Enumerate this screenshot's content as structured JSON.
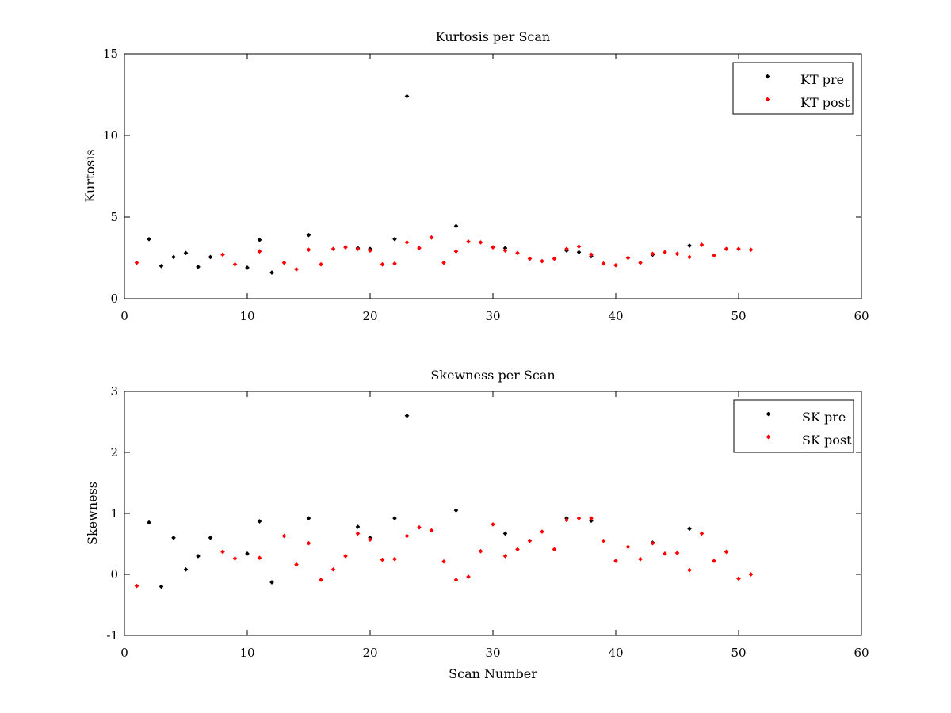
{
  "chart_data": [
    {
      "type": "scatter",
      "title": "Kurtosis per Scan",
      "xlabel": "",
      "ylabel": "Kurtosis",
      "xlim": [
        0,
        60
      ],
      "ylim": [
        0,
        15
      ],
      "xticks": [
        "0",
        "10",
        "20",
        "30",
        "40",
        "50",
        "60"
      ],
      "yticks": [
        "0",
        "5",
        "10",
        "15"
      ],
      "grid": false,
      "legend_position": "top-right",
      "series": [
        {
          "name": "KT pre",
          "color": "#000000",
          "points": [
            [
              2,
              3.65
            ],
            [
              3,
              2.0
            ],
            [
              4,
              2.55
            ],
            [
              5,
              2.8
            ],
            [
              6,
              1.95
            ],
            [
              7,
              2.55
            ],
            [
              10,
              1.9
            ],
            [
              11,
              3.6
            ],
            [
              12,
              1.6
            ],
            [
              15,
              3.9
            ],
            [
              19,
              3.1
            ],
            [
              20,
              3.05
            ],
            [
              22,
              3.65
            ],
            [
              23,
              12.4
            ],
            [
              27,
              4.45
            ],
            [
              31,
              3.1
            ],
            [
              36,
              2.95
            ],
            [
              37,
              2.85
            ],
            [
              38,
              2.6
            ],
            [
              43,
              2.7
            ],
            [
              46,
              3.25
            ]
          ]
        },
        {
          "name": "KT post",
          "color": "#ff0000",
          "points": [
            [
              1,
              2.2
            ],
            [
              8,
              2.7
            ],
            [
              9,
              2.1
            ],
            [
              11,
              2.9
            ],
            [
              13,
              2.2
            ],
            [
              14,
              1.8
            ],
            [
              15,
              3.0
            ],
            [
              16,
              2.1
            ],
            [
              17,
              3.05
            ],
            [
              18,
              3.15
            ],
            [
              19,
              3.05
            ],
            [
              20,
              2.95
            ],
            [
              21,
              2.1
            ],
            [
              22,
              2.15
            ],
            [
              23,
              3.45
            ],
            [
              24,
              3.1
            ],
            [
              25,
              3.75
            ],
            [
              26,
              2.2
            ],
            [
              27,
              2.9
            ],
            [
              28,
              3.5
            ],
            [
              29,
              3.45
            ],
            [
              30,
              3.15
            ],
            [
              31,
              2.95
            ],
            [
              32,
              2.8
            ],
            [
              33,
              2.45
            ],
            [
              34,
              2.3
            ],
            [
              35,
              2.45
            ],
            [
              36,
              3.05
            ],
            [
              37,
              3.2
            ],
            [
              38,
              2.7
            ],
            [
              39,
              2.15
            ],
            [
              40,
              2.05
            ],
            [
              41,
              2.5
            ],
            [
              42,
              2.2
            ],
            [
              43,
              2.75
            ],
            [
              44,
              2.85
            ],
            [
              45,
              2.75
            ],
            [
              46,
              2.55
            ],
            [
              47,
              3.3
            ],
            [
              48,
              2.65
            ],
            [
              49,
              3.05
            ],
            [
              50,
              3.05
            ],
            [
              51,
              3.0
            ]
          ]
        }
      ]
    },
    {
      "type": "scatter",
      "title": "Skewness per Scan",
      "xlabel": "Scan Number",
      "ylabel": "Skewness",
      "xlim": [
        0,
        60
      ],
      "ylim": [
        -1,
        3
      ],
      "xticks": [
        "0",
        "10",
        "20",
        "30",
        "40",
        "50",
        "60"
      ],
      "yticks": [
        "-1",
        "0",
        "1",
        "2",
        "3"
      ],
      "grid": false,
      "legend_position": "top-right",
      "series": [
        {
          "name": "SK pre",
          "color": "#000000",
          "points": [
            [
              2,
              0.85
            ],
            [
              3,
              -0.2
            ],
            [
              4,
              0.6
            ],
            [
              5,
              0.08
            ],
            [
              6,
              0.3
            ],
            [
              7,
              0.6
            ],
            [
              10,
              0.34
            ],
            [
              11,
              0.87
            ],
            [
              12,
              -0.13
            ],
            [
              15,
              0.92
            ],
            [
              19,
              0.78
            ],
            [
              20,
              0.6
            ],
            [
              22,
              0.92
            ],
            [
              23,
              2.6
            ],
            [
              27,
              1.05
            ],
            [
              31,
              0.67
            ],
            [
              36,
              0.92
            ],
            [
              38,
              0.88
            ],
            [
              43,
              0.52
            ],
            [
              46,
              0.75
            ]
          ]
        },
        {
          "name": "SK post",
          "color": "#ff0000",
          "points": [
            [
              1,
              -0.19
            ],
            [
              8,
              0.37
            ],
            [
              9,
              0.26
            ],
            [
              11,
              0.27
            ],
            [
              13,
              0.63
            ],
            [
              14,
              0.16
            ],
            [
              15,
              0.51
            ],
            [
              16,
              -0.09
            ],
            [
              17,
              0.08
            ],
            [
              18,
              0.3
            ],
            [
              19,
              0.67
            ],
            [
              20,
              0.57
            ],
            [
              21,
              0.24
            ],
            [
              22,
              0.25
            ],
            [
              23,
              0.63
            ],
            [
              24,
              0.77
            ],
            [
              25,
              0.72
            ],
            [
              26,
              0.21
            ],
            [
              27,
              -0.09
            ],
            [
              28,
              -0.04
            ],
            [
              29,
              0.38
            ],
            [
              30,
              0.82
            ],
            [
              31,
              0.3
            ],
            [
              32,
              0.41
            ],
            [
              33,
              0.55
            ],
            [
              34,
              0.7
            ],
            [
              35,
              0.41
            ],
            [
              36,
              0.89
            ],
            [
              37,
              0.92
            ],
            [
              38,
              0.92
            ],
            [
              39,
              0.55
            ],
            [
              40,
              0.22
            ],
            [
              41,
              0.45
            ],
            [
              42,
              0.25
            ],
            [
              43,
              0.51
            ],
            [
              44,
              0.34
            ],
            [
              45,
              0.35
            ],
            [
              46,
              0.07
            ],
            [
              47,
              0.67
            ],
            [
              48,
              0.22
            ],
            [
              49,
              0.37
            ],
            [
              50,
              -0.07
            ],
            [
              51,
              0.0
            ]
          ]
        }
      ]
    }
  ]
}
